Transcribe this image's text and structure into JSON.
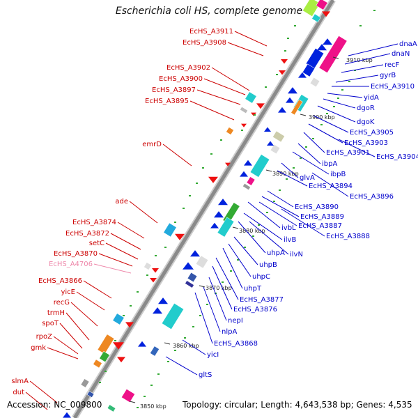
{
  "title": "Escherichia coli HS, complete genome",
  "footer": {
    "accession": "Accession: NC_009800",
    "topology": "Topology: circular; Length: 4,643,538 bp; Genes: 4,535"
  },
  "colors": {
    "label_left": "#cc0000",
    "label_right": "#0000cc",
    "label_pink": "#ee88aa",
    "backbone": "#999999",
    "gene_blue": "#0022dd",
    "gene_red": "#ee1111",
    "gene_cyan": "#22cccc",
    "gene_magenta": "#ee1188",
    "gene_green": "#33aa33"
  },
  "ticks": [
    "3910 kbp",
    "3900 kbp",
    "3890 kbp",
    "3880 kbp",
    "3870 kbp",
    "3860 kbp",
    "3850 kbp"
  ],
  "left_labels": [
    {
      "text": "EcHS_A3911"
    },
    {
      "text": "EcHS_A3908"
    },
    {
      "text": "EcHS_A3902"
    },
    {
      "text": "EcHS_A3900"
    },
    {
      "text": "EcHS_A3897"
    },
    {
      "text": "EcHS_A3895"
    },
    {
      "text": "emrD"
    },
    {
      "text": "ade"
    },
    {
      "text": "EcHS_A3874"
    },
    {
      "text": "EcHS_A3872"
    },
    {
      "text": "setC"
    },
    {
      "text": "EcHS_A3870"
    },
    {
      "text": "EcHS_A4706",
      "pink": true
    },
    {
      "text": "EcHS_A3866"
    },
    {
      "text": "yicE"
    },
    {
      "text": "recG"
    },
    {
      "text": "trmH"
    },
    {
      "text": "spoT"
    },
    {
      "text": "rpoZ"
    },
    {
      "text": "gmk"
    },
    {
      "text": "slmA"
    },
    {
      "text": "dut"
    }
  ],
  "right_labels": [
    {
      "text": "dnaA"
    },
    {
      "text": "dnaN"
    },
    {
      "text": "recF"
    },
    {
      "text": "gyrB"
    },
    {
      "text": "EcHS_A3910"
    },
    {
      "text": "yidA"
    },
    {
      "text": "dgoR"
    },
    {
      "text": "dgoK"
    },
    {
      "text": "EcHS_A3905"
    },
    {
      "text": "EcHS_A3903"
    },
    {
      "text": "EcHS_A3901"
    },
    {
      "text": "EcHS_A3904"
    },
    {
      "text": "ibpA"
    },
    {
      "text": "ibpB"
    },
    {
      "text": "glvA"
    },
    {
      "text": "EcHS_A3894"
    },
    {
      "text": "EcHS_A3896"
    },
    {
      "text": "EcHS_A3890"
    },
    {
      "text": "EcHS_A3889"
    },
    {
      "text": "EcHS_A3887"
    },
    {
      "text": "EcHS_A3888"
    },
    {
      "text": "ivbL"
    },
    {
      "text": "ilvB"
    },
    {
      "text": "ilvN"
    },
    {
      "text": "uhpA"
    },
    {
      "text": "uhpB"
    },
    {
      "text": "uhpC"
    },
    {
      "text": "uhpT"
    },
    {
      "text": "EcHS_A3877"
    },
    {
      "text": "EcHS_A3876"
    },
    {
      "text": "nepI"
    },
    {
      "text": "nlpA"
    },
    {
      "text": "EcHS_A3868"
    },
    {
      "text": "yicI"
    },
    {
      "text": "gltS"
    }
  ]
}
